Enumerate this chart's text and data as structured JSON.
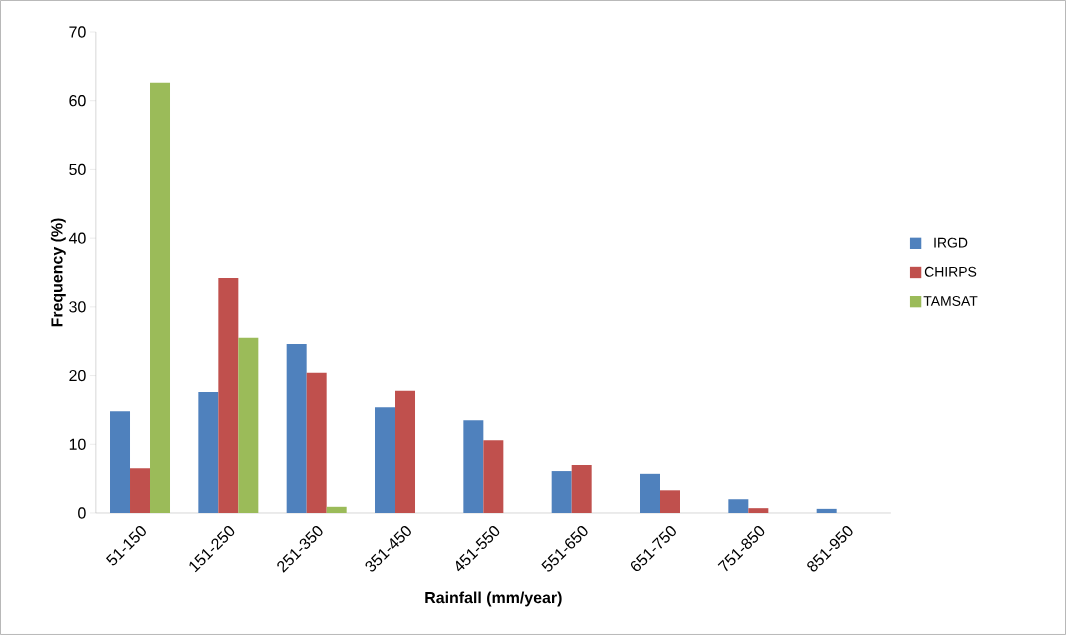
{
  "chart_data": {
    "type": "bar",
    "xlabel": "Rainfall (mm/year)",
    "ylabel": "Frequency (%)",
    "categories": [
      "51-150",
      "151-250",
      "251-350",
      "351-450",
      "451-550",
      "551-650",
      "651-750",
      "751-850",
      "851-950"
    ],
    "series": [
      {
        "name": "IRGD",
        "color": "#4f81bd",
        "values": [
          14.8,
          17.6,
          24.6,
          15.4,
          13.5,
          6.1,
          5.7,
          2.0,
          0.6
        ]
      },
      {
        "name": "CHIRPS",
        "color": "#c0504d",
        "values": [
          6.5,
          34.2,
          20.4,
          17.8,
          10.6,
          7.0,
          3.3,
          0.7,
          0
        ]
      },
      {
        "name": "TAMSAT",
        "color": "#9bbb59",
        "values": [
          62.6,
          25.5,
          0.9,
          0,
          0,
          0,
          0,
          0,
          0
        ]
      }
    ],
    "ylim": [
      0,
      70
    ],
    "yticks": [
      0,
      10,
      20,
      30,
      40,
      50,
      60,
      70
    ],
    "grid": false,
    "legend": "right"
  }
}
